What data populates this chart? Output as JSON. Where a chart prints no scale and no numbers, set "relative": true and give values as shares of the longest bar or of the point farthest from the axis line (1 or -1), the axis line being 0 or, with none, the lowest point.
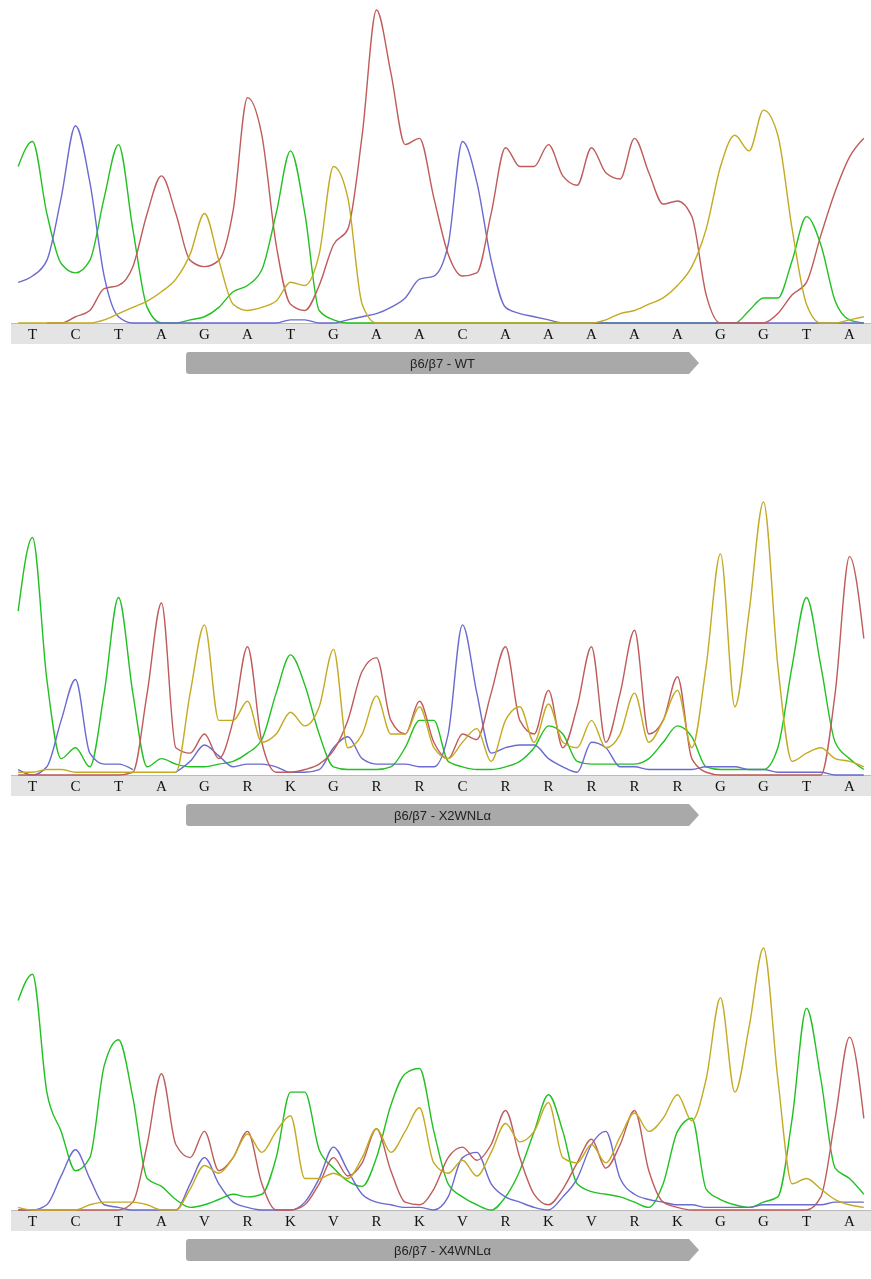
{
  "chart_data": [
    {
      "type": "line",
      "relative": true,
      "categories": [
        null,
        "T",
        null,
        null,
        "C",
        null,
        null,
        "T",
        null,
        null,
        "A",
        null,
        null,
        "G",
        null,
        null,
        "A",
        null,
        null,
        "T",
        null,
        null,
        "G",
        null,
        null,
        "A",
        null,
        null,
        "A",
        null,
        null,
        "C",
        null,
        null,
        "A",
        null,
        null,
        "A",
        null,
        null,
        "A",
        null,
        null,
        "A",
        null,
        null,
        "A",
        null,
        null,
        "G",
        null,
        null,
        "G",
        null,
        null,
        "T",
        null,
        null,
        "A",
        null
      ],
      "annotations": [
        "β6/β7 - WT"
      ],
      "series": [
        {
          "color": "#22c022",
          "values": [
            0.5,
            0.58,
            0.35,
            0.19,
            0.16,
            0.2,
            0.4,
            0.57,
            0.3,
            0.05,
            0,
            0,
            0.01,
            0.02,
            0.05,
            0.1,
            0.12,
            0.17,
            0.35,
            0.55,
            0.35,
            0.04,
            0.01,
            0,
            0,
            0,
            0,
            0,
            0,
            0,
            0,
            0,
            0,
            0,
            0,
            0,
            0,
            0,
            0,
            0,
            0,
            0,
            0,
            0,
            0,
            0,
            0,
            0,
            0,
            0,
            0,
            0.04,
            0.08,
            0.08,
            0.2,
            0.34,
            0.25,
            0.07,
            0.01,
            0
          ]
        },
        {
          "color": "#6a6ad0",
          "values": [
            0.13,
            0.15,
            0.2,
            0.4,
            0.63,
            0.45,
            0.15,
            0.02,
            0,
            0,
            0,
            0,
            0,
            0,
            0,
            0,
            0,
            0,
            0,
            0.01,
            0.01,
            0,
            0,
            0.01,
            0.02,
            0.03,
            0.05,
            0.08,
            0.14,
            0.15,
            0.25,
            0.58,
            0.45,
            0.2,
            0.05,
            0.03,
            0.02,
            0.01,
            0,
            0,
            0,
            0,
            0,
            0,
            0,
            0,
            0,
            0,
            0,
            0,
            0,
            0,
            0,
            0,
            0,
            0,
            0,
            0,
            0,
            0
          ]
        },
        {
          "color": "#bf5b5b",
          "values": [
            null,
            null,
            0,
            0,
            0.02,
            0.04,
            0.11,
            0.12,
            0.18,
            0.35,
            0.47,
            0.35,
            0.2,
            0.18,
            0.2,
            0.36,
            0.72,
            0.6,
            0.25,
            0.06,
            0.04,
            0.12,
            0.25,
            0.3,
            0.6,
            1,
            0.8,
            0.57,
            0.59,
            0.4,
            0.22,
            0.15,
            0.16,
            0.35,
            0.56,
            0.5,
            0.5,
            0.57,
            0.47,
            0.44,
            0.56,
            0.48,
            0.46,
            0.59,
            0.48,
            0.38,
            0.39,
            0.34,
            0.09,
            0,
            0,
            0,
            0,
            0.03,
            0.09,
            0.13,
            0.28,
            0.42,
            0.53,
            0.59
          ]
        },
        {
          "color": "#c4aa22",
          "values": [
            0,
            0,
            0,
            0,
            0,
            0,
            0.01,
            0.03,
            0.05,
            0.07,
            0.1,
            0.14,
            0.22,
            0.35,
            0.2,
            0.06,
            0.04,
            0.05,
            0.07,
            0.13,
            0.12,
            0.22,
            0.5,
            0.4,
            0.06,
            0,
            0,
            0,
            0,
            0,
            0,
            0,
            0,
            0,
            0,
            0,
            0,
            0,
            0,
            0,
            0,
            0.01,
            0.03,
            0.04,
            0.06,
            0.08,
            0.12,
            0.18,
            0.3,
            0.5,
            0.6,
            0.55,
            0.68,
            0.6,
            0.3,
            0.06,
            0,
            0,
            0.01,
            0.02
          ]
        }
      ]
    },
    {
      "type": "line",
      "relative": true,
      "categories": [
        null,
        "T",
        null,
        null,
        "C",
        null,
        null,
        "T",
        null,
        null,
        "A",
        null,
        null,
        "G",
        null,
        null,
        "R",
        null,
        null,
        "K",
        null,
        null,
        "G",
        null,
        null,
        "R",
        null,
        null,
        "R",
        null,
        null,
        "C",
        null,
        null,
        "R",
        null,
        null,
        "R",
        null,
        null,
        "R",
        null,
        null,
        "R",
        null,
        null,
        "R",
        null,
        null,
        "G",
        null,
        null,
        "G",
        null,
        null,
        "T",
        null,
        null,
        "A",
        null
      ],
      "annotations": [
        "β6/β7 - X2WNLα"
      ],
      "series": [
        {
          "color": "#22c022",
          "values": [
            0.6,
            0.87,
            0.35,
            0.06,
            0.1,
            0.03,
            0.3,
            0.65,
            0.3,
            0.03,
            0.06,
            0.04,
            0.03,
            0.03,
            0.04,
            0.05,
            0.08,
            0.13,
            0.3,
            0.44,
            0.33,
            0.15,
            0.03,
            0.02,
            0.02,
            0.02,
            0.03,
            0.1,
            0.2,
            0.2,
            0.05,
            0.03,
            0.02,
            0.02,
            0.03,
            0.05,
            0.1,
            0.18,
            0.15,
            0.05,
            0.04,
            0.04,
            0.04,
            0.04,
            0.06,
            0.12,
            0.18,
            0.14,
            0.03,
            0.02,
            0.02,
            0.02,
            0.02,
            0.1,
            0.4,
            0.65,
            0.4,
            0.12,
            0.06,
            0.02
          ]
        },
        {
          "color": "#6a6ad0",
          "values": [
            0.02,
            0,
            0.03,
            0.2,
            0.35,
            0.08,
            0.04,
            0.04,
            0.02,
            null,
            null,
            0.01,
            0.05,
            0.11,
            0.07,
            0.03,
            0.04,
            0.04,
            0.03,
            0.01,
            0.01,
            0.02,
            0.1,
            0.14,
            0.06,
            0.04,
            0.04,
            0.04,
            0.03,
            0.03,
            0.15,
            0.55,
            0.3,
            0.08,
            0.1,
            0.11,
            0.11,
            0.06,
            0.03,
            0.01,
            0.12,
            0.1,
            0.03,
            0.03,
            0.02,
            0.02,
            0.02,
            0.02,
            0.03,
            0.03,
            0.03,
            0.02,
            0.02,
            0.01,
            0.01,
            0.01,
            0.01,
            0,
            0,
            0
          ]
        },
        {
          "color": "#bf5b5b",
          "values": [
            0,
            0,
            0,
            0,
            0,
            0,
            0,
            0,
            0.01,
            0.3,
            0.63,
            0.1,
            0.08,
            0.15,
            0.06,
            0.2,
            0.47,
            0.12,
            0.01,
            0.01,
            0.02,
            0.04,
            0.09,
            0.2,
            0.38,
            0.43,
            0.2,
            0.15,
            0.27,
            0.12,
            0.06,
            0.15,
            0.13,
            0.3,
            0.47,
            0.2,
            0.15,
            0.31,
            0.1,
            0.25,
            0.47,
            0.12,
            0.3,
            0.53,
            0.15,
            0.2,
            0.36,
            0.06,
            0.01,
            0,
            0,
            0,
            0,
            0,
            0,
            0,
            0,
            0.3,
            0.8,
            0.5
          ]
        },
        {
          "color": "#c4aa22",
          "values": [
            0.01,
            0.01,
            0.02,
            0.02,
            0.01,
            0.01,
            0.01,
            0.01,
            0.01,
            0.01,
            0.01,
            0.01,
            0.3,
            0.55,
            0.2,
            0.2,
            0.27,
            0.12,
            0.15,
            0.23,
            0.18,
            0.25,
            0.46,
            0.1,
            0.15,
            0.29,
            0.15,
            0.15,
            0.25,
            0.1,
            0.06,
            0.12,
            0.17,
            0.05,
            0.2,
            0.25,
            0.12,
            0.26,
            0.12,
            0.1,
            0.2,
            0.1,
            0.15,
            0.3,
            0.12,
            0.2,
            0.31,
            0.1,
            0.4,
            0.81,
            0.25,
            0.6,
            1,
            0.4,
            0.05,
            0.08,
            0.1,
            0.06,
            0.05,
            0.03
          ]
        }
      ]
    },
    {
      "type": "line",
      "relative": true,
      "categories": [
        null,
        "T",
        null,
        null,
        "C",
        null,
        null,
        "T",
        null,
        null,
        "A",
        null,
        null,
        "V",
        null,
        null,
        "R",
        null,
        null,
        "K",
        null,
        null,
        "V",
        null,
        null,
        "R",
        null,
        null,
        "K",
        null,
        null,
        "V",
        null,
        null,
        "R",
        null,
        null,
        "K",
        null,
        null,
        "V",
        null,
        null,
        "R",
        null,
        null,
        "K",
        null,
        null,
        "G",
        null,
        null,
        "G",
        null,
        null,
        "T",
        null,
        null,
        "A",
        null
      ],
      "annotations": [
        "β6/β7 - X4WNLα"
      ],
      "series": [
        {
          "color": "#22c022",
          "values": [
            0.8,
            0.9,
            0.45,
            0.3,
            0.15,
            0.2,
            0.55,
            0.65,
            0.43,
            0.12,
            0.09,
            0.04,
            0.01,
            0.02,
            0.04,
            0.06,
            0.05,
            0.06,
            0.2,
            0.45,
            0.45,
            0.23,
            0.16,
            0.11,
            0.09,
            0.2,
            0.4,
            0.52,
            0.54,
            0.3,
            0.1,
            0.05,
            0.02,
            0,
            0.05,
            0.15,
            0.3,
            0.44,
            0.3,
            0.1,
            0.07,
            0.06,
            0.05,
            0.03,
            0.01,
            0.1,
            0.3,
            0.35,
            0.08,
            0.04,
            0.02,
            0.01,
            0.03,
            0.05,
            0.35,
            0.77,
            0.5,
            0.16,
            0.12,
            0.06
          ]
        },
        {
          "color": "#6a6ad0",
          "values": [
            0,
            0,
            0.02,
            0.13,
            0.23,
            0.12,
            0.02,
            0.01,
            0,
            0,
            0,
            0,
            0.1,
            0.2,
            0.1,
            0.03,
            0.01,
            0,
            0,
            0,
            0.03,
            0.12,
            0.24,
            0.15,
            0.06,
            0.03,
            0.02,
            0.01,
            0.01,
            0,
            0.05,
            0.2,
            0.22,
            0.1,
            0.05,
            0.03,
            0.01,
            0,
            0.05,
            0.12,
            0.25,
            0.3,
            0.12,
            0.06,
            0.04,
            0.03,
            0.02,
            0.02,
            0.01,
            0.01,
            0.01,
            0.01,
            0.02,
            0.02,
            0.02,
            0.02,
            0.02,
            0.03,
            0.03,
            0.03
          ]
        },
        {
          "color": "#bf5b5b",
          "values": [
            0,
            0,
            0,
            0,
            0,
            0,
            0,
            0,
            0.03,
            0.25,
            0.52,
            0.25,
            0.2,
            0.3,
            0.15,
            0.2,
            0.3,
            0.1,
            0,
            0,
            0.02,
            0.1,
            0.2,
            0.13,
            0.18,
            0.31,
            0.15,
            0.03,
            0.02,
            0.08,
            0.2,
            0.24,
            0.19,
            0.25,
            0.38,
            0.2,
            0.06,
            0.02,
            0.08,
            0.18,
            0.27,
            0.16,
            0.25,
            0.38,
            0.15,
            0.03,
            0.01,
            0,
            0,
            0,
            0,
            0,
            0,
            0,
            0,
            0,
            0.05,
            0.35,
            0.66,
            0.35
          ]
        },
        {
          "color": "#c4aa22",
          "values": [
            0.01,
            0,
            0,
            0,
            0,
            0.02,
            0.03,
            0.03,
            0.03,
            0.02,
            0,
            0,
            0.08,
            0.17,
            0.14,
            0.2,
            0.29,
            0.22,
            0.3,
            0.36,
            0.12,
            0.12,
            0.14,
            0.12,
            0.2,
            0.31,
            0.22,
            0.3,
            0.39,
            0.18,
            0.14,
            0.19,
            0.13,
            0.22,
            0.33,
            0.26,
            0.3,
            0.41,
            0.2,
            0.18,
            0.25,
            0.18,
            0.28,
            0.37,
            0.3,
            0.35,
            0.44,
            0.34,
            0.5,
            0.81,
            0.45,
            0.7,
            1,
            0.5,
            0.1,
            0.12,
            0.08,
            0.04,
            0.02,
            0.01
          ]
        }
      ]
    }
  ]
}
